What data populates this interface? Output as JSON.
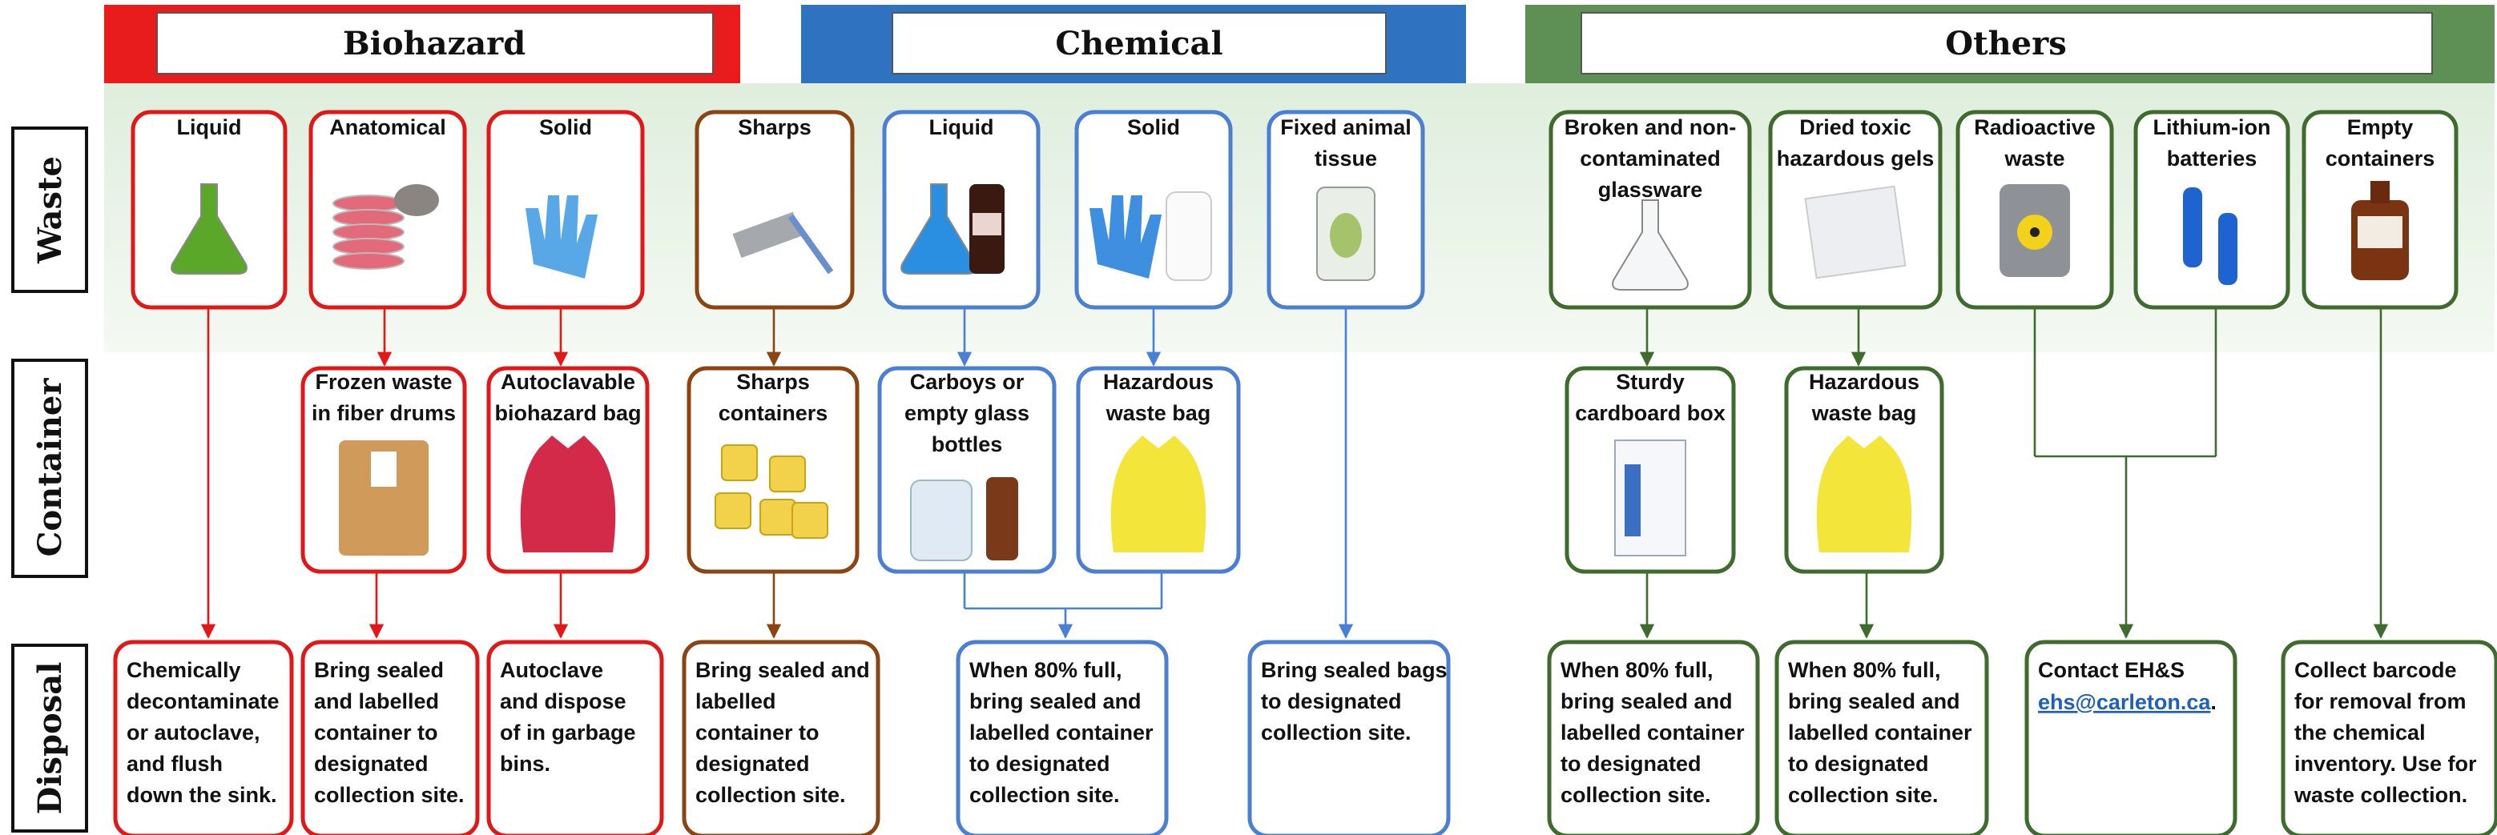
{
  "sections": [
    {
      "title": "Biohazard"
    },
    {
      "title": "Chemical"
    },
    {
      "title": "Others"
    }
  ],
  "row_labels": [
    "Waste",
    "Container",
    "Disposal"
  ],
  "waste": [
    {
      "label": [
        "Liquid"
      ]
    },
    {
      "label": [
        "Anatomical"
      ]
    },
    {
      "label": [
        "Solid"
      ]
    },
    {
      "label": [
        "Sharps"
      ]
    },
    {
      "label": [
        "Liquid"
      ]
    },
    {
      "label": [
        "Solid"
      ]
    },
    {
      "label": [
        "Fixed animal",
        "tissue"
      ]
    },
    {
      "label": [
        "Broken and non-",
        "contaminated",
        "glassware"
      ]
    },
    {
      "label": [
        "Dried toxic",
        "hazardous gels"
      ]
    },
    {
      "label": [
        "Radioactive",
        "waste"
      ]
    },
    {
      "label": [
        "Lithium-ion",
        "batteries"
      ]
    },
    {
      "label": [
        "Empty",
        "containers"
      ]
    }
  ],
  "containers": [
    {
      "label": [
        "Frozen waste",
        "in fiber drums"
      ]
    },
    {
      "label": [
        "Autoclavable",
        "biohazard bag"
      ]
    },
    {
      "label": [
        "Sharps",
        "containers"
      ]
    },
    {
      "label": [
        "Carboys or",
        "empty glass",
        "bottles"
      ]
    },
    {
      "label": [
        "Hazardous",
        "waste bag"
      ]
    },
    {
      "label": [
        "Sturdy",
        "cardboard box"
      ]
    },
    {
      "label": [
        "Hazardous",
        "waste bag"
      ]
    }
  ],
  "disposal": [
    {
      "label": [
        "Chemically",
        "decontaminate",
        "or autoclave,",
        "and flush",
        "down the sink."
      ]
    },
    {
      "label": [
        "Bring sealed",
        "and labelled",
        "container to",
        "designated",
        "collection site."
      ]
    },
    {
      "label": [
        "Autoclave",
        "and dispose",
        "of in garbage",
        "bins."
      ]
    },
    {
      "label": [
        "Bring sealed and",
        "labelled",
        "container to",
        "designated",
        "collection site."
      ]
    },
    {
      "label": [
        "When 80% full,",
        "bring sealed and",
        "labelled container",
        "to designated",
        "collection site."
      ]
    },
    {
      "label": [
        "Bring sealed bags",
        "to designated",
        "collection site."
      ]
    },
    {
      "label": [
        "When 80% full,",
        "bring sealed and",
        "labelled container",
        "to designated",
        "collection site."
      ]
    },
    {
      "label": [
        "When 80% full,",
        "bring sealed and",
        "labelled container",
        "to designated",
        "collection site."
      ]
    },
    {
      "label": [
        "Contact EH&S"
      ],
      "link": "ehs@carleton.ca",
      "link_suffix": "."
    },
    {
      "label": [
        "Collect barcode",
        "for removal from",
        "the chemical",
        "inventory. Use for",
        "waste collection."
      ]
    }
  ]
}
